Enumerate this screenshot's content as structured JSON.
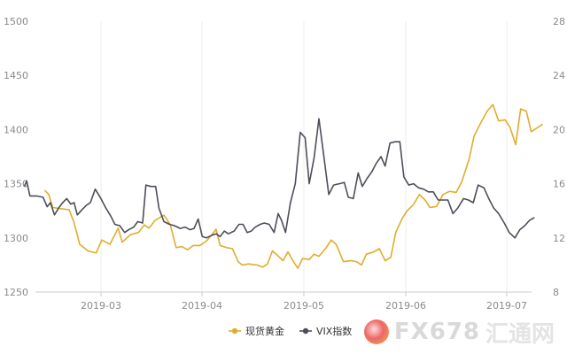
{
  "chart_data": {
    "type": "line",
    "x_ticks": [
      "2019-03",
      "2019-04",
      "2019-05",
      "2019-06",
      "2019-07"
    ],
    "y_left": {
      "range": [
        1250,
        1500
      ],
      "ticks": [
        1250,
        1300,
        1350,
        1400,
        1450,
        1500
      ]
    },
    "y_right": {
      "range": [
        8,
        28
      ],
      "ticks": [
        8,
        12,
        16,
        20,
        24,
        28
      ]
    },
    "grid": "vertical",
    "legend_position": "bottom-center",
    "series": [
      {
        "name": "现货黄金",
        "color": "#e0ad2c",
        "axis": "left",
        "points": [
          [
            0.0,
            1344
          ],
          [
            0.5,
            1340
          ],
          [
            1.0,
            1328
          ],
          [
            2.0,
            1327
          ],
          [
            3.0,
            1326
          ],
          [
            3.6,
            1314
          ],
          [
            4.3,
            1294
          ],
          [
            5.3,
            1288
          ],
          [
            6.3,
            1286
          ],
          [
            7.0,
            1298
          ],
          [
            8.0,
            1294
          ],
          [
            9.0,
            1309
          ],
          [
            9.5,
            1296
          ],
          [
            10.5,
            1303
          ],
          [
            11.5,
            1305
          ],
          [
            12.2,
            1312
          ],
          [
            12.8,
            1309
          ],
          [
            13.5,
            1316
          ],
          [
            14.6,
            1321
          ],
          [
            15.4,
            1312
          ],
          [
            16.1,
            1291
          ],
          [
            16.8,
            1292
          ],
          [
            17.5,
            1289
          ],
          [
            18.2,
            1293
          ],
          [
            19.0,
            1293
          ],
          [
            19.8,
            1297
          ],
          [
            20.5,
            1303
          ],
          [
            21.0,
            1308
          ],
          [
            21.5,
            1293
          ],
          [
            22.3,
            1291
          ],
          [
            23.0,
            1290
          ],
          [
            23.7,
            1278
          ],
          [
            24.2,
            1275
          ],
          [
            25.0,
            1276
          ],
          [
            26.0,
            1275
          ],
          [
            26.7,
            1273
          ],
          [
            27.3,
            1276
          ],
          [
            27.9,
            1288
          ],
          [
            28.5,
            1284
          ],
          [
            29.2,
            1279
          ],
          [
            29.8,
            1287
          ],
          [
            30.4,
            1279
          ],
          [
            31.0,
            1272
          ],
          [
            31.6,
            1281
          ],
          [
            32.4,
            1280
          ],
          [
            33.0,
            1285
          ],
          [
            33.6,
            1283
          ],
          [
            34.4,
            1290
          ],
          [
            35.1,
            1298
          ],
          [
            35.7,
            1294
          ],
          [
            36.6,
            1278
          ],
          [
            37.5,
            1279
          ],
          [
            38.2,
            1278
          ],
          [
            38.8,
            1275
          ],
          [
            39.4,
            1285
          ],
          [
            40.3,
            1287
          ],
          [
            41.0,
            1290
          ],
          [
            41.7,
            1279
          ],
          [
            42.4,
            1282
          ],
          [
            43.0,
            1305
          ],
          [
            43.8,
            1318
          ],
          [
            44.4,
            1325
          ],
          [
            45.2,
            1331
          ],
          [
            45.9,
            1340
          ],
          [
            46.6,
            1335
          ],
          [
            47.2,
            1328
          ],
          [
            48.0,
            1329
          ],
          [
            48.8,
            1340
          ],
          [
            49.6,
            1343
          ],
          [
            50.4,
            1342
          ],
          [
            51.1,
            1352
          ],
          [
            52.0,
            1373
          ],
          [
            52.6,
            1394
          ],
          [
            53.4,
            1406
          ],
          [
            54.2,
            1417
          ],
          [
            54.9,
            1423
          ],
          [
            55.6,
            1408
          ],
          [
            56.4,
            1409
          ],
          [
            57.0,
            1402
          ],
          [
            57.7,
            1386
          ],
          [
            58.3,
            1419
          ],
          [
            59.0,
            1417
          ],
          [
            59.6,
            1398
          ],
          [
            60.4,
            1402
          ],
          [
            61.0,
            1405
          ]
        ]
      },
      {
        "name": "VIX指数",
        "color": "#4d4e5b",
        "axis": "right",
        "points": [
          [
            -2.5,
            15.8
          ],
          [
            -2.2,
            16.2
          ],
          [
            -1.8,
            15.1
          ],
          [
            -1.0,
            15.1
          ],
          [
            -0.2,
            15.0
          ],
          [
            0.3,
            14.3
          ],
          [
            0.7,
            14.6
          ],
          [
            1.2,
            13.7
          ],
          [
            1.7,
            14.2
          ],
          [
            2.2,
            14.6
          ],
          [
            2.7,
            14.9
          ],
          [
            3.2,
            14.5
          ],
          [
            3.6,
            14.6
          ],
          [
            4.0,
            13.7
          ],
          [
            4.6,
            14.1
          ],
          [
            5.1,
            14.4
          ],
          [
            5.6,
            14.6
          ],
          [
            6.2,
            15.6
          ],
          [
            6.8,
            15.0
          ],
          [
            7.5,
            14.2
          ],
          [
            8.1,
            13.6
          ],
          [
            8.6,
            13.0
          ],
          [
            9.2,
            12.9
          ],
          [
            9.8,
            12.4
          ],
          [
            10.3,
            12.6
          ],
          [
            10.9,
            12.8
          ],
          [
            11.4,
            13.2
          ],
          [
            12.0,
            13.1
          ],
          [
            12.4,
            15.9
          ],
          [
            13.0,
            15.8
          ],
          [
            13.6,
            15.8
          ],
          [
            14.0,
            14.2
          ],
          [
            14.6,
            13.2
          ],
          [
            15.3,
            13.0
          ],
          [
            15.9,
            12.9
          ],
          [
            16.6,
            12.7
          ],
          [
            17.2,
            12.8
          ],
          [
            17.8,
            12.6
          ],
          [
            18.3,
            12.7
          ],
          [
            18.8,
            13.4
          ],
          [
            19.3,
            12.1
          ],
          [
            19.8,
            12.0
          ],
          [
            20.5,
            12.2
          ],
          [
            21.0,
            12.3
          ],
          [
            21.5,
            12.1
          ],
          [
            22.0,
            12.5
          ],
          [
            22.5,
            12.3
          ],
          [
            23.2,
            12.5
          ],
          [
            23.8,
            13.0
          ],
          [
            24.3,
            13.0
          ],
          [
            24.8,
            12.4
          ],
          [
            25.3,
            12.5
          ],
          [
            25.8,
            12.8
          ],
          [
            26.4,
            13.0
          ],
          [
            26.9,
            13.1
          ],
          [
            27.5,
            13.0
          ],
          [
            28.1,
            12.4
          ],
          [
            28.6,
            13.8
          ],
          [
            29.0,
            13.3
          ],
          [
            29.5,
            12.4
          ],
          [
            30.1,
            14.6
          ],
          [
            30.7,
            16.0
          ],
          [
            31.3,
            19.8
          ],
          [
            31.9,
            19.4
          ],
          [
            32.4,
            16.0
          ],
          [
            33.0,
            17.9
          ],
          [
            33.6,
            20.8
          ],
          [
            34.2,
            18.0
          ],
          [
            34.8,
            15.2
          ],
          [
            35.4,
            15.9
          ],
          [
            36.1,
            16.0
          ],
          [
            36.7,
            16.1
          ],
          [
            37.2,
            15.0
          ],
          [
            37.8,
            14.9
          ],
          [
            38.4,
            16.8
          ],
          [
            38.9,
            15.8
          ],
          [
            39.5,
            16.4
          ],
          [
            40.1,
            16.9
          ],
          [
            40.6,
            17.5
          ],
          [
            41.2,
            18.0
          ],
          [
            41.7,
            17.3
          ],
          [
            42.3,
            19.0
          ],
          [
            42.9,
            19.1
          ],
          [
            43.5,
            19.1
          ],
          [
            44.0,
            16.5
          ],
          [
            44.6,
            15.9
          ],
          [
            45.2,
            16.0
          ],
          [
            45.8,
            15.7
          ],
          [
            46.4,
            15.6
          ],
          [
            47.0,
            15.4
          ],
          [
            47.6,
            15.4
          ],
          [
            48.2,
            14.8
          ],
          [
            48.8,
            14.8
          ],
          [
            49.4,
            14.8
          ],
          [
            50.0,
            13.8
          ],
          [
            50.6,
            14.2
          ],
          [
            51.3,
            14.9
          ],
          [
            51.9,
            14.8
          ],
          [
            52.5,
            14.6
          ],
          [
            53.1,
            15.9
          ],
          [
            53.8,
            15.7
          ],
          [
            54.4,
            14.9
          ],
          [
            55.0,
            14.2
          ],
          [
            55.6,
            13.8
          ],
          [
            56.3,
            13.1
          ],
          [
            56.9,
            12.4
          ],
          [
            57.6,
            12.0
          ],
          [
            58.2,
            12.6
          ],
          [
            58.8,
            12.9
          ],
          [
            59.4,
            13.3
          ],
          [
            60.0,
            13.5
          ]
        ]
      }
    ]
  }
}
